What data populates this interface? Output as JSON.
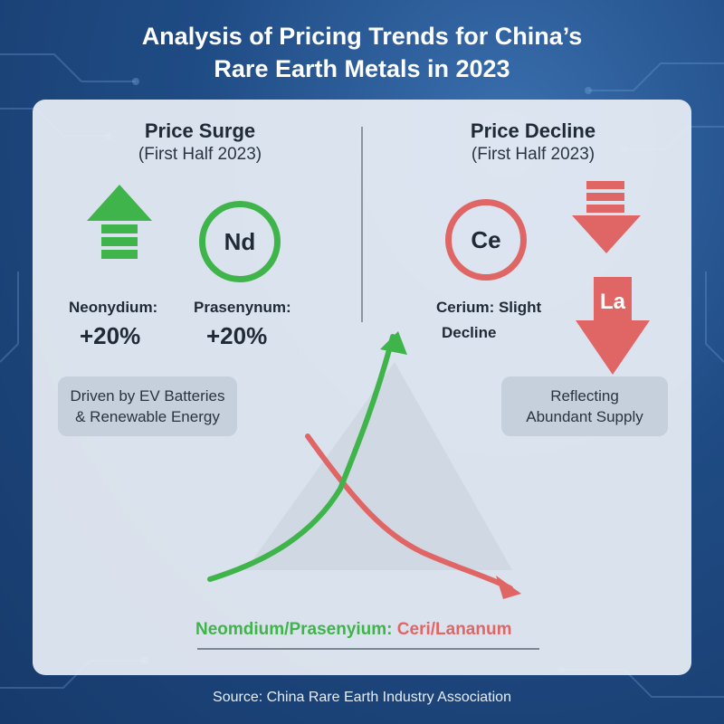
{
  "title_line1": "Analysis of Pricing Trends for China’s",
  "title_line2": "Rare Earth Metals in 2023",
  "left": {
    "heading": "Price Surge",
    "subheading": "(First Half 2023)",
    "symbol": "Nd",
    "items": [
      {
        "label": "Neonydium:",
        "value": "+20%"
      },
      {
        "label": "Prasenynum:",
        "value": "+20%"
      }
    ],
    "note_line1": "Driven by EV Batteries",
    "note_line2": "& Renewable Energy"
  },
  "right": {
    "heading": "Price Decline",
    "subheading": "(First Half 2023)",
    "symbol_circle": "Ce",
    "symbol_arrow": "La",
    "label_line1": "Cerium: Slight",
    "label_line2": "Decline",
    "note_line1": "Reflecting",
    "note_line2": "Abundant Supply"
  },
  "legend": {
    "green_text": "Neomdium/Prasenyium:",
    "red_text": "Ceri/Lananum"
  },
  "colors": {
    "increase": "#3fb44a",
    "decrease": "#e06666"
  },
  "source": "Source: China Rare Earth Industry Association"
}
